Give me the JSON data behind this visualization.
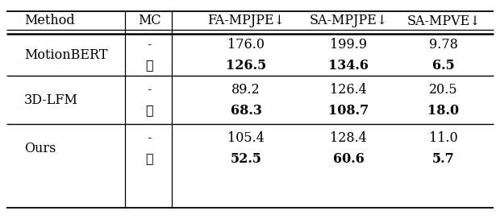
{
  "col_headers": [
    "Method",
    "MC",
    "FA-MPJPE↓",
    "SA-MPJPE↓",
    "SA-MPVE↓"
  ],
  "rows": [
    [
      "MotionBERT",
      "-",
      "176.0",
      "199.9",
      "9.78"
    ],
    [
      "MotionBERT",
      "✓",
      "126.5",
      "134.6",
      "6.5"
    ],
    [
      "3D-LFM",
      "-",
      "89.2",
      "126.4",
      "20.5"
    ],
    [
      "3D-LFM",
      "✓",
      "68.3",
      "108.7",
      "18.0"
    ],
    [
      "Ours",
      "-",
      "105.4",
      "128.4",
      "11.0"
    ],
    [
      "Ours",
      "✓",
      "52.5",
      "60.6",
      "5.7"
    ]
  ],
  "bold_rows": [
    1,
    3,
    5
  ],
  "bg_color": "#ffffff",
  "text_color": "#000000",
  "figsize": [
    6.2,
    2.72
  ],
  "dpi": 100
}
